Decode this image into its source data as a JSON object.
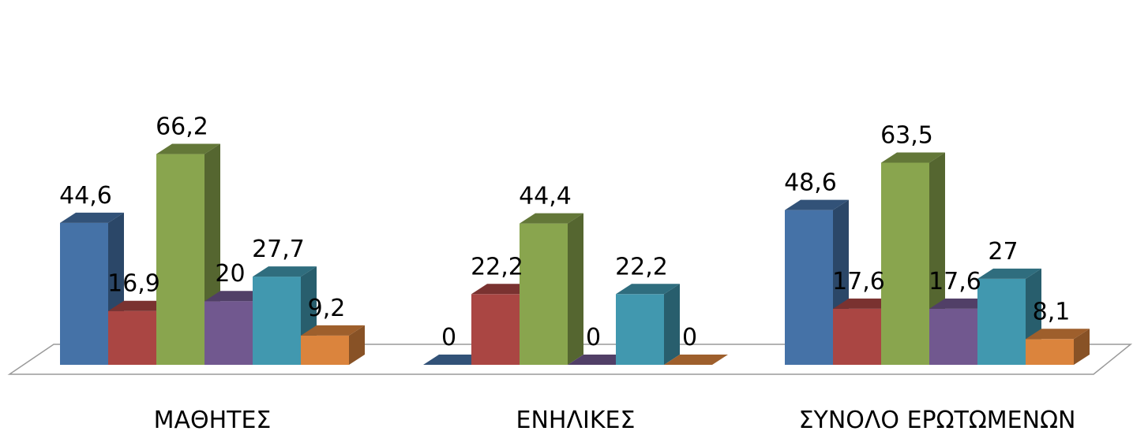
{
  "chart_data": {
    "type": "bar",
    "style": "3d-clustered-column",
    "categories": [
      "ΜΑΘΗΤΕΣ",
      "ΕΝΗΛΙΚΕΣ",
      "ΣΥΝΟΛΟ ΕΡΩΤΩΜΕΝΩΝ"
    ],
    "series": [
      {
        "values": [
          44.6,
          0,
          48.6
        ],
        "labels": [
          "44,6",
          "0",
          "48,6"
        ],
        "color": "#4572A7"
      },
      {
        "values": [
          16.9,
          22.2,
          17.6
        ],
        "labels": [
          "16,9",
          "22,2",
          "17,6"
        ],
        "color": "#AA4643"
      },
      {
        "values": [
          66.2,
          44.4,
          63.5
        ],
        "labels": [
          "66,2",
          "44,4",
          "63,5"
        ],
        "color": "#89A54E"
      },
      {
        "values": [
          20,
          0,
          17.6
        ],
        "labels": [
          "20",
          "0",
          "17,6"
        ],
        "color": "#71588F"
      },
      {
        "values": [
          27.7,
          22.2,
          27
        ],
        "labels": [
          "27,7",
          "22,2",
          "27"
        ],
        "color": "#4198AF"
      },
      {
        "values": [
          9.2,
          0,
          8.1
        ],
        "labels": [
          "9,2",
          "0",
          "8,1"
        ],
        "color": "#DB843D"
      }
    ],
    "title": "",
    "xlabel": "",
    "ylabel": "",
    "ylim": [
      0,
      70
    ],
    "grid": false,
    "legend": "none",
    "data_labels": true
  }
}
